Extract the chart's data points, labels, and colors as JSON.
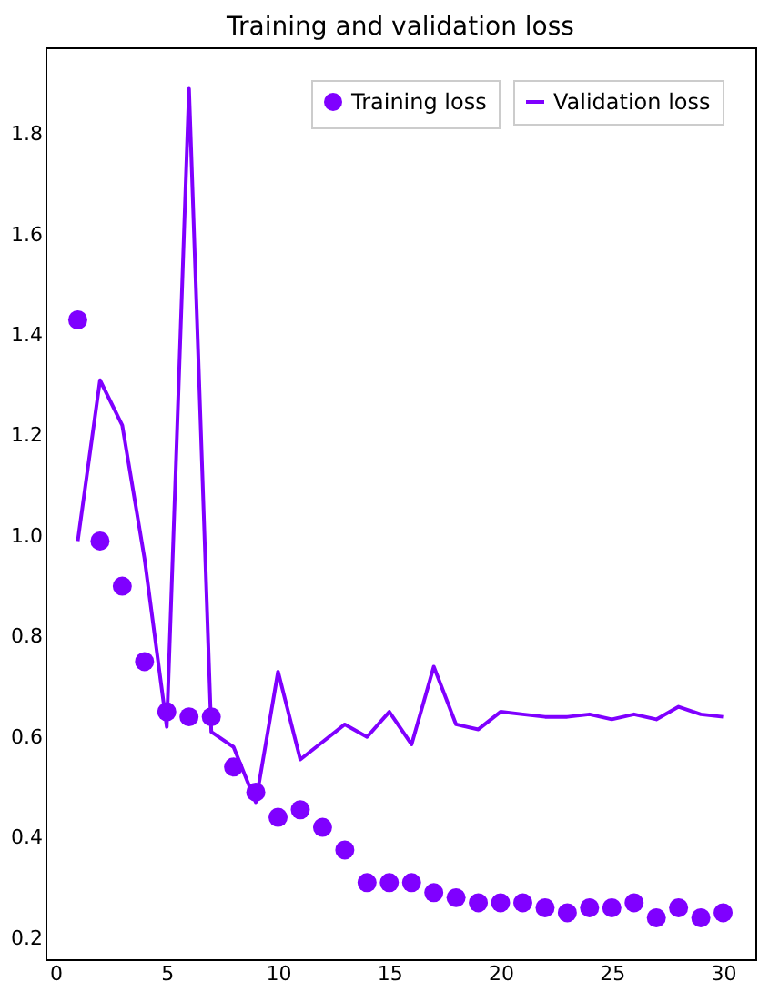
{
  "chart_data": {
    "type": "scatter",
    "title": "Training and validation loss",
    "x": [
      1,
      2,
      3,
      4,
      5,
      6,
      7,
      8,
      9,
      10,
      11,
      12,
      13,
      14,
      15,
      16,
      17,
      18,
      19,
      20,
      21,
      22,
      23,
      24,
      25,
      26,
      27,
      28,
      29,
      30
    ],
    "series": [
      {
        "name": "Training loss",
        "marker": "circle",
        "color": "#7f00ff",
        "values": [
          1.43,
          0.99,
          0.9,
          0.75,
          0.65,
          0.64,
          0.64,
          0.54,
          0.49,
          0.44,
          0.455,
          0.42,
          0.375,
          0.31,
          0.31,
          0.31,
          0.29,
          0.28,
          0.27,
          0.27,
          0.27,
          0.26,
          0.25,
          0.26,
          0.26,
          0.27,
          0.24,
          0.26,
          0.24,
          0.25
        ]
      },
      {
        "name": "Validation loss",
        "type": "line",
        "color": "#7f00ff",
        "values": [
          0.99,
          1.31,
          1.22,
          0.955,
          0.62,
          1.89,
          0.61,
          0.58,
          0.47,
          0.73,
          0.555,
          0.59,
          0.625,
          0.6,
          0.65,
          0.585,
          0.74,
          0.625,
          0.615,
          0.65,
          0.645,
          0.64,
          0.64,
          0.645,
          0.635,
          0.645,
          0.635,
          0.66,
          0.645,
          0.64
        ]
      }
    ],
    "xlim": [
      -0.45,
      31.45
    ],
    "ylim": [
      0.1575,
      1.9725
    ],
    "xticks": [
      0,
      5,
      10,
      15,
      20,
      25,
      30
    ],
    "yticks": [
      {
        "value": 0.2,
        "label": "0.2"
      },
      {
        "value": 0.4,
        "label": "0.4"
      },
      {
        "value": 0.6,
        "label": "0.6"
      },
      {
        "value": 0.8,
        "label": "0.8"
      },
      {
        "value": 1.0,
        "label": "1.0"
      },
      {
        "value": 1.2,
        "label": "1.2"
      },
      {
        "value": 1.4,
        "label": "1.4"
      },
      {
        "value": 1.6,
        "label": "1.6"
      },
      {
        "value": 1.8,
        "label": "1.8"
      }
    ],
    "grid": false,
    "legend": "top right",
    "line_style": "solid"
  }
}
